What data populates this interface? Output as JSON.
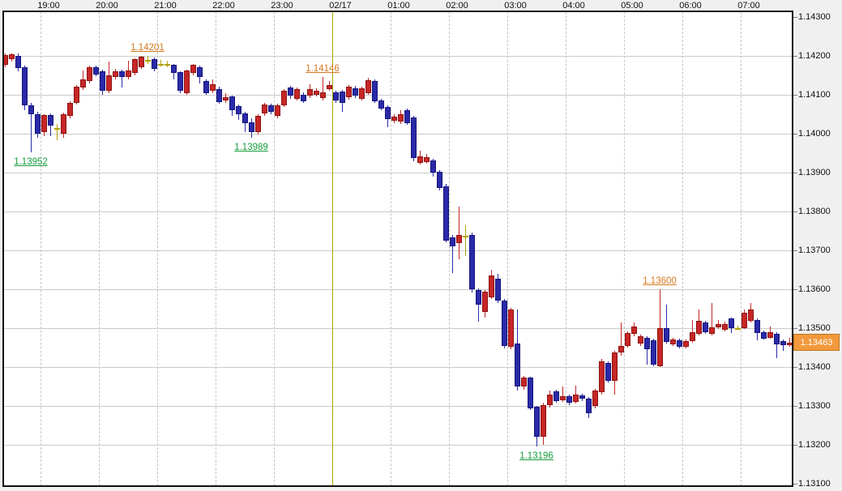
{
  "chart_data": {
    "type": "candlestick",
    "x_axis": {
      "labels": [
        "19:00",
        "20:00",
        "21:00",
        "22:00",
        "23:00",
        "02/17",
        "01:00",
        "02:00",
        "03:00",
        "04:00",
        "05:00",
        "06:00",
        "07:00"
      ],
      "separator_index": 5,
      "separator_label": "02/17"
    },
    "y_axis": {
      "ticks": [
        {
          "label": "1.14300",
          "value": 1.143
        },
        {
          "label": "1.14200",
          "value": 1.142
        },
        {
          "label": "1.14100",
          "value": 1.141
        },
        {
          "label": "1.14000",
          "value": 1.14
        },
        {
          "label": "1.13900",
          "value": 1.139
        },
        {
          "label": "1.13800",
          "value": 1.138
        },
        {
          "label": "1.13700",
          "value": 1.137
        },
        {
          "label": "1.13600",
          "value": 1.136
        },
        {
          "label": "1.13500",
          "value": 1.135
        },
        {
          "label": "1.13400",
          "value": 1.134
        },
        {
          "label": "1.13300",
          "value": 1.133
        },
        {
          "label": "1.13200",
          "value": 1.132
        },
        {
          "label": "1.13100",
          "value": 1.131
        }
      ],
      "range": [
        1.131,
        1.143
      ]
    },
    "grid": true,
    "current_price": {
      "label": "1.13463",
      "value": 1.13463
    },
    "colors": {
      "up": "#c62626",
      "up_border": "#8e1212",
      "down": "#2a2aa8",
      "down_border": "#14147e",
      "doji": "#b0a000",
      "grid": "#cacaca",
      "separator": "#b0a800",
      "high_label": "#d4781e",
      "low_label": "#169c3c",
      "badge_bg": "#f2993c",
      "badge_border": "#c0761c",
      "badge_text": "#ffffff"
    },
    "annotations": [
      {
        "text": "1.14201",
        "price": 1.14201,
        "candle": 22,
        "kind": "high"
      },
      {
        "text": "1.14146",
        "price": 1.14146,
        "candle": 49,
        "kind": "high"
      },
      {
        "text": "1.13600",
        "price": 1.136,
        "candle": 101,
        "kind": "high"
      },
      {
        "text": "1.13952",
        "price": 1.13952,
        "candle": 4,
        "kind": "low"
      },
      {
        "text": "1.13989",
        "price": 1.13989,
        "candle": 38,
        "kind": "low"
      },
      {
        "text": "1.13196",
        "price": 1.13196,
        "candle": 82,
        "kind": "low"
      }
    ],
    "candles": [
      [
        1.14177,
        1.14206,
        1.1417,
        1.14203
      ],
      [
        1.14191,
        1.14206,
        1.14186,
        1.14205
      ],
      [
        1.142,
        1.14206,
        1.1416,
        1.14168
      ],
      [
        1.1417,
        1.14175,
        1.1406,
        1.14073
      ],
      [
        1.14073,
        1.1408,
        1.13952,
        1.14049
      ],
      [
        1.14049,
        1.14056,
        1.1399,
        1.14
      ],
      [
        1.14005,
        1.14051,
        1.13993,
        1.14048
      ],
      [
        1.14048,
        1.14052,
        1.13993,
        1.1402
      ],
      [
        1.14015,
        1.14025,
        1.13983,
        1.14015
      ],
      [
        1.14,
        1.14055,
        1.1399,
        1.14051
      ],
      [
        1.14046,
        1.14084,
        1.1404,
        1.1408
      ],
      [
        1.1408,
        1.14125,
        1.14076,
        1.14121
      ],
      [
        1.14118,
        1.14163,
        1.14112,
        1.14139
      ],
      [
        1.14135,
        1.14174,
        1.1413,
        1.1417
      ],
      [
        1.1417,
        1.14176,
        1.14148,
        1.14152
      ],
      [
        1.1416,
        1.14165,
        1.141,
        1.1411
      ],
      [
        1.1411,
        1.14185,
        1.14105,
        1.1415
      ],
      [
        1.14146,
        1.14166,
        1.1414,
        1.1416
      ],
      [
        1.1416,
        1.14165,
        1.14118,
        1.14145
      ],
      [
        1.14145,
        1.14188,
        1.1414,
        1.14162
      ],
      [
        1.14156,
        1.14194,
        1.1415,
        1.14191
      ],
      [
        1.1417,
        1.142,
        1.14166,
        1.14198
      ],
      [
        1.1419,
        1.14201,
        1.1418,
        1.1419
      ],
      [
        1.14191,
        1.14196,
        1.1416,
        1.14167
      ],
      [
        1.1418,
        1.1419,
        1.14172,
        1.1418
      ],
      [
        1.14179,
        1.14188,
        1.1417,
        1.14179
      ],
      [
        1.14177,
        1.1418,
        1.14139,
        1.14156
      ],
      [
        1.14158,
        1.14161,
        1.14105,
        1.1411
      ],
      [
        1.14104,
        1.14165,
        1.141,
        1.14163
      ],
      [
        1.14156,
        1.1418,
        1.1415,
        1.14177
      ],
      [
        1.1417,
        1.14174,
        1.1413,
        1.14146
      ],
      [
        1.14135,
        1.1414,
        1.141,
        1.14104
      ],
      [
        1.14111,
        1.1414,
        1.14105,
        1.14128
      ],
      [
        1.14115,
        1.1412,
        1.14078,
        1.14081
      ],
      [
        1.14086,
        1.14105,
        1.1408,
        1.14094
      ],
      [
        1.14096,
        1.14098,
        1.14045,
        1.1406
      ],
      [
        1.1407,
        1.14074,
        1.14035,
        1.14049
      ],
      [
        1.14053,
        1.14056,
        1.14004,
        1.14028
      ],
      [
        1.1403,
        1.1404,
        1.13989,
        1.14005
      ],
      [
        1.14005,
        1.1405,
        1.13998,
        1.14045
      ],
      [
        1.14052,
        1.1408,
        1.14046,
        1.14076
      ],
      [
        1.14073,
        1.14078,
        1.1405,
        1.14056
      ],
      [
        1.14045,
        1.14078,
        1.1404,
        1.14073
      ],
      [
        1.14073,
        1.14115,
        1.14068,
        1.1411
      ],
      [
        1.14118,
        1.14122,
        1.1409,
        1.14097
      ],
      [
        1.1409,
        1.14118,
        1.14086,
        1.14115
      ],
      [
        1.14101,
        1.14106,
        1.1408,
        1.14083
      ],
      [
        1.14097,
        1.14128,
        1.14092,
        1.14115
      ],
      [
        1.141,
        1.14116,
        1.14095,
        1.1411
      ],
      [
        1.14092,
        1.14146,
        1.14085,
        1.14106
      ],
      [
        1.14115,
        1.14135,
        1.1411,
        1.14125
      ],
      [
        1.14106,
        1.1411,
        1.1408,
        1.14085
      ],
      [
        1.14108,
        1.14112,
        1.14056,
        1.1408
      ],
      [
        1.14093,
        1.14125,
        1.14088,
        1.14121
      ],
      [
        1.14117,
        1.14122,
        1.14092,
        1.14097
      ],
      [
        1.1409,
        1.1412,
        1.14086,
        1.14117
      ],
      [
        1.14104,
        1.14143,
        1.141,
        1.14138
      ],
      [
        1.14135,
        1.1414,
        1.1408,
        1.14083
      ],
      [
        1.14086,
        1.1409,
        1.1406,
        1.14065
      ],
      [
        1.14068,
        1.14072,
        1.14016,
        1.14037
      ],
      [
        1.14034,
        1.1405,
        1.14028,
        1.14044
      ],
      [
        1.14031,
        1.1406,
        1.14026,
        1.14051
      ],
      [
        1.1406,
        1.14064,
        1.14022,
        1.14028
      ],
      [
        1.14041,
        1.14045,
        1.1393,
        1.13937
      ],
      [
        1.13926,
        1.13956,
        1.1392,
        1.13941
      ],
      [
        1.13928,
        1.13948,
        1.13922,
        1.1394
      ],
      [
        1.13931,
        1.13936,
        1.1389,
        1.13899
      ],
      [
        1.13903,
        1.13906,
        1.13855,
        1.13861
      ],
      [
        1.13864,
        1.1387,
        1.1372,
        1.13726
      ],
      [
        1.13733,
        1.1374,
        1.13642,
        1.1371
      ],
      [
        1.13718,
        1.13813,
        1.13677,
        1.1374
      ],
      [
        1.13738,
        1.13765,
        1.13685,
        1.13738
      ],
      [
        1.1374,
        1.13745,
        1.13592,
        1.136
      ],
      [
        1.13598,
        1.13602,
        1.13516,
        1.1356
      ],
      [
        1.13542,
        1.13598,
        1.13528,
        1.13594
      ],
      [
        1.1358,
        1.1365,
        1.13575,
        1.13635
      ],
      [
        1.13628,
        1.1364,
        1.13565,
        1.1357
      ],
      [
        1.1357,
        1.13575,
        1.13448,
        1.13455
      ],
      [
        1.13452,
        1.13552,
        1.13445,
        1.13548
      ],
      [
        1.1346,
        1.13548,
        1.1334,
        1.13349
      ],
      [
        1.13349,
        1.13378,
        1.13342,
        1.13373
      ],
      [
        1.13373,
        1.13376,
        1.1329,
        1.13294
      ],
      [
        1.13297,
        1.133,
        1.13196,
        1.1322
      ],
      [
        1.1322,
        1.13308,
        1.132,
        1.13302
      ],
      [
        1.13302,
        1.1334,
        1.13296,
        1.1333
      ],
      [
        1.13337,
        1.13342,
        1.13308,
        1.13312
      ],
      [
        1.13315,
        1.1335,
        1.1331,
        1.13325
      ],
      [
        1.13325,
        1.1333,
        1.13302,
        1.13308
      ],
      [
        1.1331,
        1.13352,
        1.13306,
        1.1333
      ],
      [
        1.13328,
        1.13332,
        1.13312,
        1.13318
      ],
      [
        1.13318,
        1.13322,
        1.13268,
        1.13282
      ],
      [
        1.13299,
        1.13344,
        1.13294,
        1.1334
      ],
      [
        1.13335,
        1.1342,
        1.1333,
        1.13415
      ],
      [
        1.1341,
        1.13414,
        1.1336,
        1.13365
      ],
      [
        1.13365,
        1.13442,
        1.1333,
        1.13438
      ],
      [
        1.13438,
        1.13514,
        1.1343,
        1.13455
      ],
      [
        1.13455,
        1.13492,
        1.1345,
        1.13488
      ],
      [
        1.13485,
        1.13515,
        1.1348,
        1.13505
      ],
      [
        1.1346,
        1.13484,
        1.13455,
        1.1348
      ],
      [
        1.13476,
        1.1348,
        1.13407,
        1.13445
      ],
      [
        1.13469,
        1.13472,
        1.13403,
        1.13407
      ],
      [
        1.13403,
        1.136,
        1.134,
        1.135
      ],
      [
        1.135,
        1.1356,
        1.1346,
        1.13465
      ],
      [
        1.13458,
        1.13474,
        1.13454,
        1.1347
      ],
      [
        1.13469,
        1.13472,
        1.13448,
        1.13452
      ],
      [
        1.13452,
        1.1347,
        1.13448,
        1.13466
      ],
      [
        1.13466,
        1.13521,
        1.13462,
        1.1349
      ],
      [
        1.13486,
        1.13548,
        1.13482,
        1.13518
      ],
      [
        1.13514,
        1.13518,
        1.13486,
        1.1349
      ],
      [
        1.13486,
        1.13565,
        1.13482,
        1.13503
      ],
      [
        1.13503,
        1.1352,
        1.13498,
        1.1351
      ],
      [
        1.13496,
        1.13517,
        1.13492,
        1.1351
      ],
      [
        1.13525,
        1.13528,
        1.13487,
        1.13501
      ],
      [
        1.13501,
        1.13506,
        1.13496,
        1.13501
      ],
      [
        1.13501,
        1.13547,
        1.13497,
        1.13539
      ],
      [
        1.13518,
        1.13565,
        1.13514,
        1.13547
      ],
      [
        1.13521,
        1.13525,
        1.13469,
        1.13487
      ],
      [
        1.1349,
        1.13494,
        1.1347,
        1.13473
      ],
      [
        1.13476,
        1.13504,
        1.13472,
        1.13489
      ],
      [
        1.13486,
        1.1349,
        1.13422,
        1.13458
      ],
      [
        1.13466,
        1.1347,
        1.13442,
        1.13456
      ],
      [
        1.13456,
        1.13474,
        1.13452,
        1.13463
      ]
    ]
  }
}
